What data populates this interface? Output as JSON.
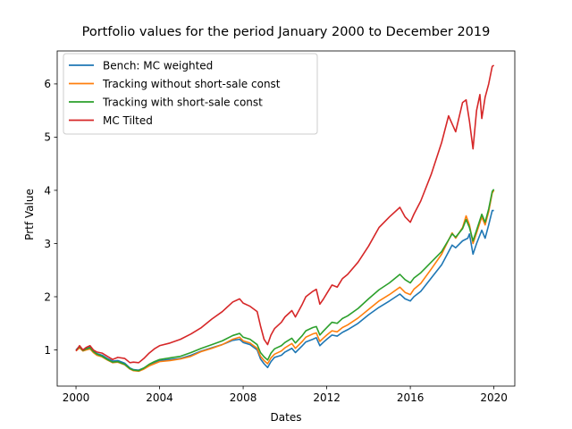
{
  "chart_data": {
    "type": "line",
    "title": "Portfolio values for the period January 2000 to December 2019",
    "xlabel": "Dates",
    "ylabel": "Prtf Value",
    "x_ticks": [
      {
        "label": "2000",
        "value": 2000
      },
      {
        "label": "2004",
        "value": 2004
      },
      {
        "label": "2008",
        "value": 2008
      },
      {
        "label": "2012",
        "value": 2012
      },
      {
        "label": "2016",
        "value": 2016
      },
      {
        "label": "2020",
        "value": 2020
      }
    ],
    "y_ticks": [
      {
        "label": "1",
        "value": 1
      },
      {
        "label": "2",
        "value": 2
      },
      {
        "label": "3",
        "value": 3
      },
      {
        "label": "4",
        "value": 4
      },
      {
        "label": "5",
        "value": 5
      },
      {
        "label": "6",
        "value": 6
      }
    ],
    "xlim": [
      1999.1,
      2021.0
    ],
    "ylim": [
      0.32,
      6.62
    ],
    "grid": false,
    "legend_position": "top-left",
    "series": [
      {
        "name": "Bench: MC weighted",
        "color": "#1f77b4",
        "points": [
          [
            2000.0,
            1.0
          ],
          [
            2000.17,
            1.07
          ],
          [
            2000.33,
            1.0
          ],
          [
            2000.5,
            1.03
          ],
          [
            2000.67,
            1.06
          ],
          [
            2000.83,
            0.98
          ],
          [
            2001.0,
            0.93
          ],
          [
            2001.25,
            0.9
          ],
          [
            2001.5,
            0.84
          ],
          [
            2001.75,
            0.79
          ],
          [
            2002.0,
            0.8
          ],
          [
            2002.33,
            0.75
          ],
          [
            2002.58,
            0.66
          ],
          [
            2002.75,
            0.63
          ],
          [
            2003.0,
            0.62
          ],
          [
            2003.25,
            0.66
          ],
          [
            2003.5,
            0.72
          ],
          [
            2003.75,
            0.76
          ],
          [
            2004.0,
            0.8
          ],
          [
            2004.5,
            0.82
          ],
          [
            2005.0,
            0.84
          ],
          [
            2005.5,
            0.9
          ],
          [
            2006.0,
            0.98
          ],
          [
            2006.5,
            1.04
          ],
          [
            2007.0,
            1.1
          ],
          [
            2007.5,
            1.18
          ],
          [
            2007.83,
            1.2
          ],
          [
            2008.0,
            1.14
          ],
          [
            2008.33,
            1.1
          ],
          [
            2008.67,
            1.0
          ],
          [
            2008.83,
            0.83
          ],
          [
            2009.0,
            0.74
          ],
          [
            2009.17,
            0.67
          ],
          [
            2009.33,
            0.78
          ],
          [
            2009.5,
            0.86
          ],
          [
            2009.83,
            0.9
          ],
          [
            2010.0,
            0.96
          ],
          [
            2010.33,
            1.03
          ],
          [
            2010.5,
            0.95
          ],
          [
            2010.83,
            1.08
          ],
          [
            2011.0,
            1.15
          ],
          [
            2011.33,
            1.2
          ],
          [
            2011.5,
            1.23
          ],
          [
            2011.67,
            1.08
          ],
          [
            2011.83,
            1.14
          ],
          [
            2012.0,
            1.2
          ],
          [
            2012.25,
            1.28
          ],
          [
            2012.5,
            1.26
          ],
          [
            2012.75,
            1.33
          ],
          [
            2013.0,
            1.38
          ],
          [
            2013.5,
            1.5
          ],
          [
            2014.0,
            1.66
          ],
          [
            2014.5,
            1.8
          ],
          [
            2015.0,
            1.92
          ],
          [
            2015.5,
            2.05
          ],
          [
            2015.75,
            1.96
          ],
          [
            2016.0,
            1.92
          ],
          [
            2016.17,
            2.0
          ],
          [
            2016.5,
            2.1
          ],
          [
            2017.0,
            2.35
          ],
          [
            2017.5,
            2.6
          ],
          [
            2018.0,
            2.97
          ],
          [
            2018.17,
            2.92
          ],
          [
            2018.5,
            3.05
          ],
          [
            2018.75,
            3.1
          ],
          [
            2018.83,
            3.18
          ],
          [
            2019.0,
            2.8
          ],
          [
            2019.17,
            3.0
          ],
          [
            2019.42,
            3.25
          ],
          [
            2019.58,
            3.1
          ],
          [
            2019.75,
            3.35
          ],
          [
            2019.92,
            3.62
          ],
          [
            2020.0,
            3.62
          ]
        ]
      },
      {
        "name": "Tracking without short-sale const",
        "color": "#ff7f0e",
        "points": [
          [
            2000.0,
            0.98
          ],
          [
            2000.17,
            1.04
          ],
          [
            2000.33,
            0.98
          ],
          [
            2000.5,
            1.0
          ],
          [
            2000.67,
            1.02
          ],
          [
            2000.83,
            0.95
          ],
          [
            2001.0,
            0.9
          ],
          [
            2001.25,
            0.87
          ],
          [
            2001.5,
            0.81
          ],
          [
            2001.75,
            0.76
          ],
          [
            2002.0,
            0.77
          ],
          [
            2002.33,
            0.72
          ],
          [
            2002.58,
            0.64
          ],
          [
            2002.75,
            0.61
          ],
          [
            2003.0,
            0.6
          ],
          [
            2003.25,
            0.64
          ],
          [
            2003.5,
            0.7
          ],
          [
            2003.75,
            0.74
          ],
          [
            2004.0,
            0.78
          ],
          [
            2004.5,
            0.8
          ],
          [
            2005.0,
            0.83
          ],
          [
            2005.5,
            0.88
          ],
          [
            2006.0,
            0.97
          ],
          [
            2006.5,
            1.03
          ],
          [
            2007.0,
            1.1
          ],
          [
            2007.5,
            1.2
          ],
          [
            2007.83,
            1.24
          ],
          [
            2008.0,
            1.17
          ],
          [
            2008.33,
            1.13
          ],
          [
            2008.67,
            1.03
          ],
          [
            2008.83,
            0.88
          ],
          [
            2009.0,
            0.8
          ],
          [
            2009.17,
            0.74
          ],
          [
            2009.33,
            0.85
          ],
          [
            2009.5,
            0.92
          ],
          [
            2009.83,
            0.98
          ],
          [
            2010.0,
            1.04
          ],
          [
            2010.33,
            1.12
          ],
          [
            2010.5,
            1.03
          ],
          [
            2010.83,
            1.16
          ],
          [
            2011.0,
            1.24
          ],
          [
            2011.33,
            1.3
          ],
          [
            2011.5,
            1.32
          ],
          [
            2011.67,
            1.16
          ],
          [
            2011.83,
            1.22
          ],
          [
            2012.0,
            1.28
          ],
          [
            2012.25,
            1.36
          ],
          [
            2012.5,
            1.34
          ],
          [
            2012.75,
            1.42
          ],
          [
            2013.0,
            1.47
          ],
          [
            2013.5,
            1.6
          ],
          [
            2014.0,
            1.76
          ],
          [
            2014.5,
            1.92
          ],
          [
            2015.0,
            2.04
          ],
          [
            2015.5,
            2.18
          ],
          [
            2015.75,
            2.08
          ],
          [
            2016.0,
            2.04
          ],
          [
            2016.17,
            2.14
          ],
          [
            2016.5,
            2.25
          ],
          [
            2017.0,
            2.52
          ],
          [
            2017.5,
            2.8
          ],
          [
            2018.0,
            3.2
          ],
          [
            2018.17,
            3.1
          ],
          [
            2018.5,
            3.3
          ],
          [
            2018.67,
            3.52
          ],
          [
            2018.83,
            3.35
          ],
          [
            2019.0,
            3.0
          ],
          [
            2019.17,
            3.2
          ],
          [
            2019.42,
            3.5
          ],
          [
            2019.58,
            3.35
          ],
          [
            2019.75,
            3.6
          ],
          [
            2019.92,
            3.95
          ],
          [
            2020.0,
            4.0
          ]
        ]
      },
      {
        "name": "Tracking with short-sale const",
        "color": "#2ca02c",
        "points": [
          [
            2000.0,
            0.99
          ],
          [
            2000.17,
            1.06
          ],
          [
            2000.33,
            0.99
          ],
          [
            2000.5,
            1.02
          ],
          [
            2000.67,
            1.04
          ],
          [
            2000.83,
            0.97
          ],
          [
            2001.0,
            0.92
          ],
          [
            2001.25,
            0.88
          ],
          [
            2001.5,
            0.82
          ],
          [
            2001.75,
            0.77
          ],
          [
            2002.0,
            0.78
          ],
          [
            2002.33,
            0.73
          ],
          [
            2002.58,
            0.65
          ],
          [
            2002.75,
            0.62
          ],
          [
            2003.0,
            0.61
          ],
          [
            2003.25,
            0.66
          ],
          [
            2003.5,
            0.73
          ],
          [
            2003.75,
            0.78
          ],
          [
            2004.0,
            0.82
          ],
          [
            2004.5,
            0.85
          ],
          [
            2005.0,
            0.88
          ],
          [
            2005.5,
            0.95
          ],
          [
            2006.0,
            1.03
          ],
          [
            2006.5,
            1.1
          ],
          [
            2007.0,
            1.17
          ],
          [
            2007.5,
            1.27
          ],
          [
            2007.83,
            1.31
          ],
          [
            2008.0,
            1.24
          ],
          [
            2008.33,
            1.2
          ],
          [
            2008.67,
            1.1
          ],
          [
            2008.83,
            0.95
          ],
          [
            2009.0,
            0.87
          ],
          [
            2009.17,
            0.81
          ],
          [
            2009.33,
            0.94
          ],
          [
            2009.5,
            1.02
          ],
          [
            2009.83,
            1.08
          ],
          [
            2010.0,
            1.14
          ],
          [
            2010.33,
            1.22
          ],
          [
            2010.5,
            1.13
          ],
          [
            2010.83,
            1.27
          ],
          [
            2011.0,
            1.36
          ],
          [
            2011.33,
            1.42
          ],
          [
            2011.5,
            1.44
          ],
          [
            2011.67,
            1.28
          ],
          [
            2011.83,
            1.35
          ],
          [
            2012.0,
            1.42
          ],
          [
            2012.25,
            1.52
          ],
          [
            2012.5,
            1.5
          ],
          [
            2012.75,
            1.59
          ],
          [
            2013.0,
            1.64
          ],
          [
            2013.5,
            1.78
          ],
          [
            2014.0,
            1.96
          ],
          [
            2014.5,
            2.13
          ],
          [
            2015.0,
            2.26
          ],
          [
            2015.5,
            2.42
          ],
          [
            2015.75,
            2.32
          ],
          [
            2016.0,
            2.26
          ],
          [
            2016.17,
            2.35
          ],
          [
            2016.5,
            2.45
          ],
          [
            2017.0,
            2.65
          ],
          [
            2017.5,
            2.85
          ],
          [
            2018.0,
            3.18
          ],
          [
            2018.17,
            3.12
          ],
          [
            2018.5,
            3.28
          ],
          [
            2018.67,
            3.45
          ],
          [
            2018.83,
            3.3
          ],
          [
            2019.0,
            3.05
          ],
          [
            2019.17,
            3.25
          ],
          [
            2019.42,
            3.55
          ],
          [
            2019.58,
            3.4
          ],
          [
            2019.75,
            3.65
          ],
          [
            2019.92,
            3.98
          ],
          [
            2020.0,
            4.02
          ]
        ]
      },
      {
        "name": "MC Tilted",
        "color": "#d62728",
        "points": [
          [
            2000.0,
            0.98
          ],
          [
            2000.17,
            1.08
          ],
          [
            2000.33,
            1.0
          ],
          [
            2000.5,
            1.05
          ],
          [
            2000.67,
            1.08
          ],
          [
            2000.83,
            1.0
          ],
          [
            2001.0,
            0.96
          ],
          [
            2001.25,
            0.94
          ],
          [
            2001.5,
            0.88
          ],
          [
            2001.75,
            0.82
          ],
          [
            2002.0,
            0.86
          ],
          [
            2002.33,
            0.84
          ],
          [
            2002.58,
            0.76
          ],
          [
            2002.75,
            0.77
          ],
          [
            2003.0,
            0.76
          ],
          [
            2003.25,
            0.84
          ],
          [
            2003.5,
            0.94
          ],
          [
            2003.75,
            1.02
          ],
          [
            2004.0,
            1.08
          ],
          [
            2004.5,
            1.13
          ],
          [
            2005.0,
            1.2
          ],
          [
            2005.5,
            1.3
          ],
          [
            2006.0,
            1.42
          ],
          [
            2006.5,
            1.58
          ],
          [
            2007.0,
            1.72
          ],
          [
            2007.5,
            1.9
          ],
          [
            2007.83,
            1.96
          ],
          [
            2008.0,
            1.88
          ],
          [
            2008.33,
            1.82
          ],
          [
            2008.67,
            1.72
          ],
          [
            2008.83,
            1.45
          ],
          [
            2009.0,
            1.2
          ],
          [
            2009.17,
            1.1
          ],
          [
            2009.33,
            1.28
          ],
          [
            2009.5,
            1.4
          ],
          [
            2009.83,
            1.52
          ],
          [
            2010.0,
            1.62
          ],
          [
            2010.33,
            1.74
          ],
          [
            2010.5,
            1.62
          ],
          [
            2010.83,
            1.86
          ],
          [
            2011.0,
            2.0
          ],
          [
            2011.33,
            2.1
          ],
          [
            2011.5,
            2.14
          ],
          [
            2011.67,
            1.86
          ],
          [
            2011.83,
            1.95
          ],
          [
            2012.0,
            2.06
          ],
          [
            2012.25,
            2.22
          ],
          [
            2012.5,
            2.18
          ],
          [
            2012.75,
            2.34
          ],
          [
            2013.0,
            2.42
          ],
          [
            2013.5,
            2.65
          ],
          [
            2014.0,
            2.95
          ],
          [
            2014.5,
            3.3
          ],
          [
            2015.0,
            3.5
          ],
          [
            2015.5,
            3.68
          ],
          [
            2015.75,
            3.5
          ],
          [
            2016.0,
            3.4
          ],
          [
            2016.17,
            3.55
          ],
          [
            2016.5,
            3.8
          ],
          [
            2017.0,
            4.3
          ],
          [
            2017.5,
            4.9
          ],
          [
            2017.83,
            5.4
          ],
          [
            2018.0,
            5.25
          ],
          [
            2018.17,
            5.1
          ],
          [
            2018.5,
            5.65
          ],
          [
            2018.67,
            5.7
          ],
          [
            2018.83,
            5.3
          ],
          [
            2019.0,
            4.78
          ],
          [
            2019.17,
            5.5
          ],
          [
            2019.33,
            5.8
          ],
          [
            2019.42,
            5.35
          ],
          [
            2019.58,
            5.75
          ],
          [
            2019.75,
            6.0
          ],
          [
            2019.92,
            6.33
          ],
          [
            2020.0,
            6.35
          ]
        ]
      }
    ]
  }
}
